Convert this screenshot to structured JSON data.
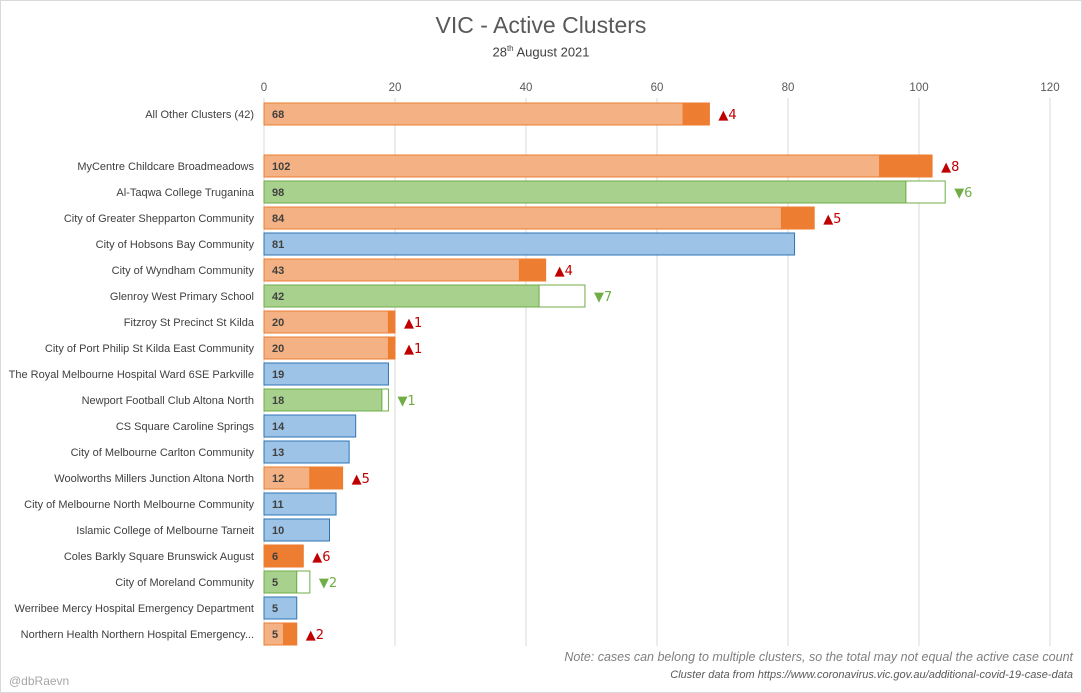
{
  "chart_title": "VIC - Active Clusters",
  "subtitle": {
    "prefix": "28",
    "sup": "th",
    "suffix": " August 2021"
  },
  "note": "Note: cases can belong to multiple clusters, so the total may not equal the active case count",
  "source": "Cluster data from https://www.coronavirus.vic.gov.au/additional-covid-19-case-data",
  "author": "@dbRaevn",
  "colors": {
    "increase_base": "#f4b183",
    "increase_delta": "#ed7d31",
    "increase_text": "#c00000",
    "decrease_base": "#a9d18e",
    "decrease_border": "#70ad47",
    "decrease_text": "#70ad47",
    "steady_base": "#9dc3e6",
    "steady_border": "#2e75b6",
    "gridline": "#d9d9d9",
    "axis_text": "#595959"
  },
  "chart_data": {
    "type": "bar",
    "orientation": "horizontal",
    "xlim": [
      0,
      120
    ],
    "x_ticks": [
      "0",
      "20",
      "40",
      "60",
      "80",
      "100",
      "120"
    ],
    "grid": true,
    "categories": [
      "All Other Clusters (42)",
      "",
      "MyCentre Childcare Broadmeadows",
      "Al-Taqwa College Truganina",
      "City of Greater Shepparton Community",
      "City of Hobsons Bay Community",
      "City of Wyndham Community",
      "Glenroy West Primary School",
      "Fitzroy St Precinct St Kilda",
      "City of Port Philip St Kilda East Community",
      "The Royal Melbourne Hospital Ward 6SE Parkville",
      "Newport Football Club Altona North",
      "CS Square Caroline Springs",
      "City of Melbourne Carlton Community",
      "Woolworths Millers Junction Altona North",
      "City of Melbourne North Melbourne Community",
      "Islamic College of Melbourne Tarneit",
      "Coles Barkly Square Brunswick August",
      "City of Moreland Community",
      "Werribee Mercy Hospital Emergency Department",
      "Northern Health Northern Hospital Emergency..."
    ],
    "values": [
      68,
      null,
      102,
      98,
      84,
      81,
      43,
      42,
      20,
      20,
      19,
      18,
      14,
      13,
      12,
      11,
      10,
      6,
      5,
      5,
      5
    ],
    "value_labels": [
      "68",
      "",
      "102",
      "98",
      "84",
      "81",
      "43",
      "42",
      "20",
      "20",
      "19",
      "18",
      "14",
      "13",
      "12",
      "11",
      "10",
      "6",
      "5",
      "5",
      "5"
    ],
    "change_direction": [
      "up",
      "",
      "up",
      "down",
      "up",
      "none",
      "up",
      "down",
      "up",
      "up",
      "none",
      "down",
      "none",
      "none",
      "up",
      "none",
      "none",
      "up",
      "down",
      "none",
      "up"
    ],
    "change": [
      4,
      null,
      8,
      6,
      5,
      0,
      4,
      7,
      1,
      1,
      0,
      1,
      0,
      0,
      5,
      0,
      0,
      6,
      2,
      0,
      2
    ],
    "change_labels": [
      "▲4",
      "",
      "▲8",
      "▼6",
      "▲5",
      "",
      "▲4",
      "▼7",
      "▲1",
      "▲1",
      "",
      "▼1",
      "",
      "",
      "▲5",
      "",
      "",
      "▲6",
      "▼2",
      "",
      "▲2"
    ]
  }
}
